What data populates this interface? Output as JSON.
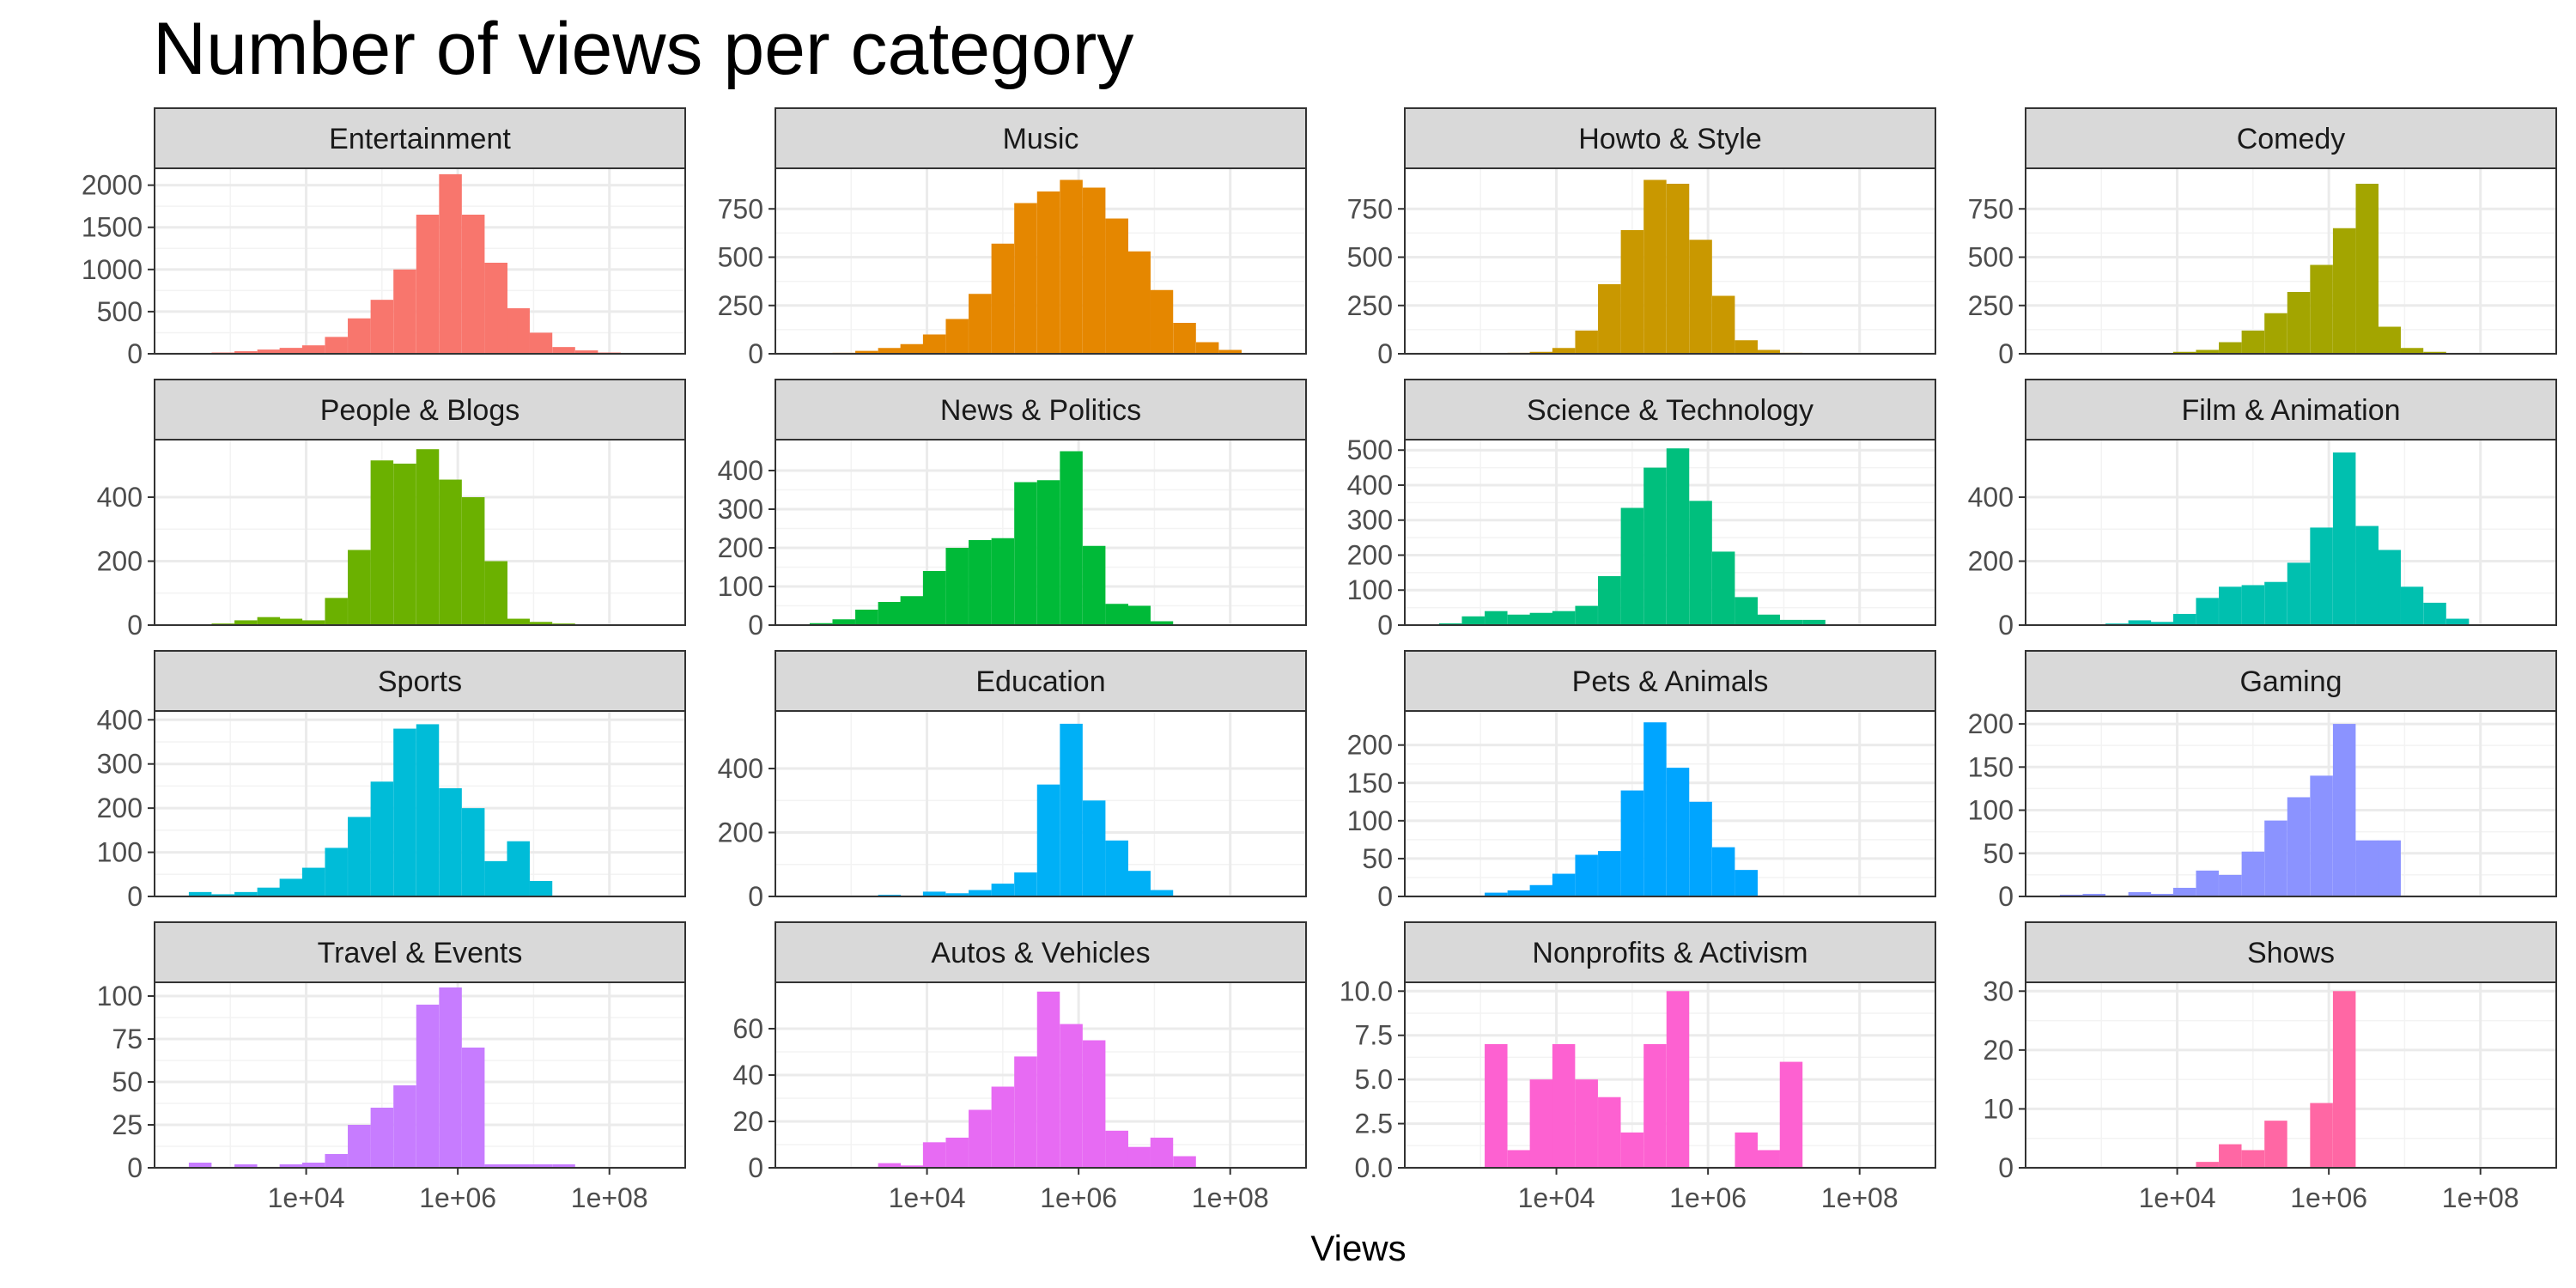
{
  "chart_data": {
    "type": "bar",
    "title": "Number of views per category",
    "xlabel": "Views",
    "ylabel": "",
    "x_scale": "log10",
    "x_range": [
      100,
      1000000000
    ],
    "x_ticks": [
      10000,
      1000000,
      100000000
    ],
    "x_tick_labels": [
      "1e+04",
      "1e+06",
      "1e+08"
    ],
    "bin_width_log10": 0.3,
    "grid": true,
    "legend": "none",
    "panels": [
      {
        "name": "Entertainment",
        "color": "#F8766D",
        "ylim": [
          0,
          2200
        ],
        "y_ticks": [
          0,
          500,
          1000,
          1500,
          2000
        ],
        "bins": [
          [
            800,
            15
          ],
          [
            1600,
            30
          ],
          [
            3200,
            50
          ],
          [
            6300,
            70
          ],
          [
            12500,
            100
          ],
          [
            25000,
            200
          ],
          [
            50000,
            420
          ],
          [
            100000,
            640
          ],
          [
            200000,
            1000
          ],
          [
            400000,
            1650
          ],
          [
            800000,
            2130
          ],
          [
            1600000,
            1650
          ],
          [
            3200000,
            1080
          ],
          [
            6300000,
            540
          ],
          [
            12500000,
            250
          ],
          [
            25000000,
            80
          ],
          [
            50000000,
            40
          ],
          [
            100000000,
            15
          ]
        ]
      },
      {
        "name": "Music",
        "color": "#E58700",
        "ylim": [
          0,
          960
        ],
        "y_ticks": [
          0,
          250,
          500,
          750
        ],
        "bins": [
          [
            800,
            5
          ],
          [
            1600,
            15
          ],
          [
            3200,
            30
          ],
          [
            6300,
            50
          ],
          [
            12500,
            100
          ],
          [
            25000,
            180
          ],
          [
            50000,
            310
          ],
          [
            100000,
            570
          ],
          [
            200000,
            780
          ],
          [
            400000,
            840
          ],
          [
            800000,
            900
          ],
          [
            1600000,
            860
          ],
          [
            3200000,
            700
          ],
          [
            6300000,
            530
          ],
          [
            12500000,
            330
          ],
          [
            25000000,
            160
          ],
          [
            50000000,
            60
          ],
          [
            100000000,
            20
          ]
        ]
      },
      {
        "name": "Howto & Style",
        "color": "#C99800",
        "ylim": [
          0,
          960
        ],
        "y_ticks": [
          0,
          250,
          500,
          750
        ],
        "bins": [
          [
            3200,
            5
          ],
          [
            6300,
            10
          ],
          [
            12500,
            30
          ],
          [
            25000,
            120
          ],
          [
            50000,
            360
          ],
          [
            100000,
            640
          ],
          [
            200000,
            900
          ],
          [
            400000,
            880
          ],
          [
            800000,
            590
          ],
          [
            1600000,
            300
          ],
          [
            3200000,
            70
          ],
          [
            6300000,
            20
          ],
          [
            12500000,
            5
          ]
        ]
      },
      {
        "name": "Comedy",
        "color": "#A3A500",
        "ylim": [
          0,
          960
        ],
        "y_ticks": [
          0,
          250,
          500,
          750
        ],
        "bins": [
          [
            12500,
            10
          ],
          [
            25000,
            20
          ],
          [
            50000,
            60
          ],
          [
            100000,
            120
          ],
          [
            200000,
            210
          ],
          [
            400000,
            320
          ],
          [
            800000,
            460
          ],
          [
            1600000,
            650
          ],
          [
            3200000,
            880
          ],
          [
            6300000,
            140
          ],
          [
            12500000,
            30
          ],
          [
            25000000,
            10
          ]
        ]
      },
      {
        "name": "People & Blogs",
        "color": "#6BB100",
        "ylim": [
          0,
          580
        ],
        "y_ticks": [
          0,
          200,
          400
        ],
        "bins": [
          [
            800,
            5
          ],
          [
            1600,
            15
          ],
          [
            3200,
            25
          ],
          [
            6300,
            20
          ],
          [
            12500,
            15
          ],
          [
            25000,
            85
          ],
          [
            50000,
            235
          ],
          [
            100000,
            515
          ],
          [
            200000,
            505
          ],
          [
            400000,
            550
          ],
          [
            800000,
            455
          ],
          [
            1600000,
            400
          ],
          [
            3200000,
            200
          ],
          [
            6300000,
            20
          ],
          [
            12500000,
            10
          ],
          [
            25000000,
            5
          ]
        ]
      },
      {
        "name": "News & Politics",
        "color": "#00BA38",
        "ylim": [
          0,
          480
        ],
        "y_ticks": [
          0,
          100,
          200,
          300,
          400
        ],
        "bins": [
          [
            400,
            5
          ],
          [
            800,
            15
          ],
          [
            1600,
            40
          ],
          [
            3200,
            60
          ],
          [
            6300,
            75
          ],
          [
            12500,
            140
          ],
          [
            25000,
            200
          ],
          [
            50000,
            220
          ],
          [
            100000,
            225
          ],
          [
            200000,
            370
          ],
          [
            400000,
            375
          ],
          [
            800000,
            450
          ],
          [
            1600000,
            205
          ],
          [
            3200000,
            55
          ],
          [
            6300000,
            50
          ],
          [
            12500000,
            10
          ]
        ]
      },
      {
        "name": "Science & Technology",
        "color": "#00BF7D",
        "ylim": [
          0,
          530
        ],
        "y_ticks": [
          0,
          100,
          200,
          300,
          400,
          500
        ],
        "bins": [
          [
            400,
            5
          ],
          [
            800,
            25
          ],
          [
            1600,
            40
          ],
          [
            3200,
            30
          ],
          [
            6300,
            35
          ],
          [
            12500,
            40
          ],
          [
            25000,
            55
          ],
          [
            50000,
            140
          ],
          [
            100000,
            335
          ],
          [
            200000,
            450
          ],
          [
            400000,
            505
          ],
          [
            800000,
            355
          ],
          [
            1600000,
            210
          ],
          [
            3200000,
            80
          ],
          [
            6300000,
            30
          ],
          [
            12500000,
            15
          ],
          [
            25000000,
            15
          ]
        ]
      },
      {
        "name": "Film & Animation",
        "color": "#00C0AF",
        "ylim": [
          0,
          580
        ],
        "y_ticks": [
          0,
          200,
          400
        ],
        "bins": [
          [
            1600,
            5
          ],
          [
            3200,
            15
          ],
          [
            6300,
            10
          ],
          [
            12500,
            35
          ],
          [
            25000,
            85
          ],
          [
            50000,
            120
          ],
          [
            100000,
            125
          ],
          [
            200000,
            135
          ],
          [
            400000,
            195
          ],
          [
            800000,
            305
          ],
          [
            1600000,
            540
          ],
          [
            3200000,
            310
          ],
          [
            6300000,
            235
          ],
          [
            12500000,
            120
          ],
          [
            25000000,
            70
          ],
          [
            50000000,
            20
          ]
        ]
      },
      {
        "name": "Sports",
        "color": "#00BCD8",
        "ylim": [
          0,
          420
        ],
        "y_ticks": [
          0,
          100,
          200,
          300,
          400
        ],
        "bins": [
          [
            400,
            10
          ],
          [
            800,
            5
          ],
          [
            1600,
            10
          ],
          [
            3200,
            20
          ],
          [
            6300,
            40
          ],
          [
            12500,
            65
          ],
          [
            25000,
            110
          ],
          [
            50000,
            180
          ],
          [
            100000,
            260
          ],
          [
            200000,
            380
          ],
          [
            400000,
            390
          ],
          [
            800000,
            245
          ],
          [
            1600000,
            200
          ],
          [
            3200000,
            80
          ],
          [
            6300000,
            125
          ],
          [
            12500000,
            35
          ]
        ]
      },
      {
        "name": "Education",
        "color": "#00B0F6",
        "ylim": [
          0,
          580
        ],
        "y_ticks": [
          0,
          200,
          400
        ],
        "bins": [
          [
            3200,
            5
          ],
          [
            12500,
            15
          ],
          [
            25000,
            10
          ],
          [
            50000,
            20
          ],
          [
            100000,
            40
          ],
          [
            200000,
            75
          ],
          [
            400000,
            350
          ],
          [
            800000,
            540
          ],
          [
            1600000,
            300
          ],
          [
            3200000,
            175
          ],
          [
            6300000,
            80
          ],
          [
            12500000,
            20
          ]
        ]
      },
      {
        "name": "Pets & Animals",
        "color": "#00A5FF",
        "ylim": [
          0,
          245
        ],
        "y_ticks": [
          0,
          50,
          100,
          150,
          200
        ],
        "bins": [
          [
            1600,
            5
          ],
          [
            3200,
            8
          ],
          [
            6300,
            15
          ],
          [
            12500,
            30
          ],
          [
            25000,
            55
          ],
          [
            50000,
            60
          ],
          [
            100000,
            140
          ],
          [
            200000,
            230
          ],
          [
            400000,
            170
          ],
          [
            800000,
            125
          ],
          [
            1600000,
            65
          ],
          [
            3200000,
            35
          ]
        ]
      },
      {
        "name": "Gaming",
        "color": "#8B93FF",
        "ylim": [
          0,
          215
        ],
        "y_ticks": [
          0,
          50,
          100,
          150,
          200
        ],
        "bins": [
          [
            400,
            2
          ],
          [
            800,
            3
          ],
          [
            3200,
            5
          ],
          [
            6300,
            3
          ],
          [
            12500,
            10
          ],
          [
            25000,
            30
          ],
          [
            50000,
            25
          ],
          [
            100000,
            52
          ],
          [
            200000,
            88
          ],
          [
            400000,
            115
          ],
          [
            800000,
            140
          ],
          [
            1600000,
            200
          ],
          [
            3200000,
            65
          ],
          [
            6300000,
            65
          ]
        ]
      },
      {
        "name": "Travel & Events",
        "color": "#C77CFF",
        "ylim": [
          0,
          108
        ],
        "y_ticks": [
          0,
          25,
          50,
          75,
          100
        ],
        "bins": [
          [
            400,
            3
          ],
          [
            1600,
            2
          ],
          [
            6300,
            2
          ],
          [
            12500,
            3
          ],
          [
            25000,
            8
          ],
          [
            50000,
            25
          ],
          [
            100000,
            35
          ],
          [
            200000,
            48
          ],
          [
            400000,
            95
          ],
          [
            800000,
            105
          ],
          [
            1600000,
            70
          ],
          [
            3200000,
            2
          ],
          [
            6300000,
            2
          ],
          [
            12500000,
            2
          ],
          [
            25000000,
            2
          ]
        ]
      },
      {
        "name": "Autos & Vehicles",
        "color": "#E76BF3",
        "ylim": [
          0,
          80
        ],
        "y_ticks": [
          0,
          20,
          40,
          60
        ],
        "bins": [
          [
            3200,
            2
          ],
          [
            6300,
            1
          ],
          [
            12500,
            11
          ],
          [
            25000,
            13
          ],
          [
            50000,
            25
          ],
          [
            100000,
            35
          ],
          [
            200000,
            48
          ],
          [
            400000,
            76
          ],
          [
            800000,
            62
          ],
          [
            1600000,
            55
          ],
          [
            3200000,
            16
          ],
          [
            6300000,
            9
          ],
          [
            12500000,
            13
          ],
          [
            25000000,
            5
          ]
        ]
      },
      {
        "name": "Nonprofits & Activism",
        "color": "#FD61D1",
        "ylim": [
          0,
          10.5
        ],
        "y_ticks": [
          0,
          2.5,
          5,
          7.5,
          10
        ],
        "y_tick_labels": [
          "0.0",
          "2.5",
          "5.0",
          "7.5",
          "10.0"
        ],
        "bins": [
          [
            1600,
            7
          ],
          [
            3200,
            1
          ],
          [
            6300,
            5
          ],
          [
            12500,
            7
          ],
          [
            25000,
            5
          ],
          [
            50000,
            4
          ],
          [
            100000,
            2
          ],
          [
            200000,
            7
          ],
          [
            400000,
            10
          ],
          [
            3200000,
            2
          ],
          [
            6300000,
            1
          ],
          [
            12500000,
            6
          ]
        ]
      },
      {
        "name": "Shows",
        "color": "#FF67A4",
        "ylim": [
          0,
          31.5
        ],
        "y_ticks": [
          0,
          10,
          20,
          30
        ],
        "bins": [
          [
            25000,
            1
          ],
          [
            50000,
            4
          ],
          [
            100000,
            3
          ],
          [
            200000,
            8
          ],
          [
            800000,
            11
          ],
          [
            1600000,
            30
          ]
        ]
      }
    ]
  }
}
